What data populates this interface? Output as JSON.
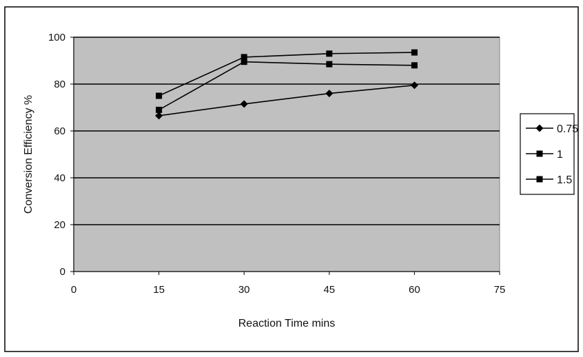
{
  "chart_data": {
    "type": "line",
    "title": "",
    "xlabel": "Reaction Time mins",
    "ylabel": "Conversion Efficiency %",
    "xlim": [
      0,
      75
    ],
    "ylim": [
      0,
      100
    ],
    "xticks": [
      0,
      15,
      30,
      45,
      60,
      75
    ],
    "yticks": [
      0,
      20,
      40,
      60,
      80,
      100
    ],
    "grid": "horizontal",
    "legend_position": "right",
    "plot_background": "#c0c0c0",
    "line_color": "#000000",
    "series": [
      {
        "name": "0.75",
        "marker": "diamond",
        "x": [
          15,
          30,
          45,
          60
        ],
        "y": [
          66.5,
          71.5,
          76,
          79.5
        ]
      },
      {
        "name": "1",
        "marker": "square",
        "x": [
          15,
          30,
          45,
          60
        ],
        "y": [
          69,
          89.5,
          88.5,
          88
        ]
      },
      {
        "name": "1.5",
        "marker": "square",
        "x": [
          15,
          30,
          45,
          60
        ],
        "y": [
          75,
          91.5,
          93,
          93.5
        ]
      }
    ]
  }
}
